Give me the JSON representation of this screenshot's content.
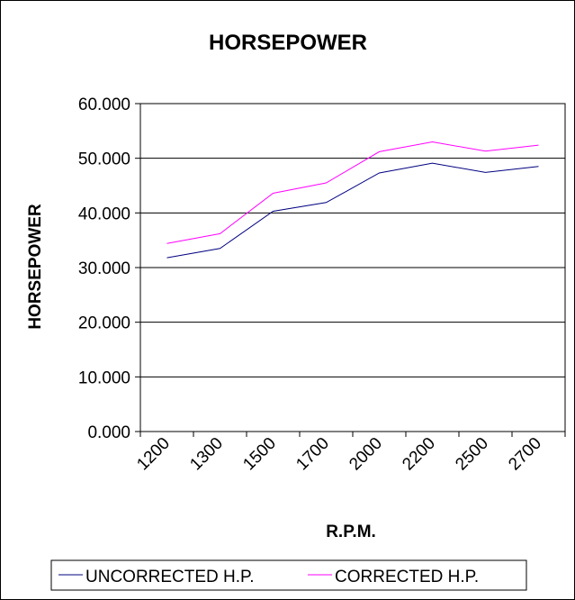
{
  "chart_data": {
    "type": "line",
    "title": "HORSEPOWER",
    "xlabel": "R.P.M.",
    "ylabel": "HORSEPOWER",
    "categories": [
      "1200",
      "1300",
      "1500",
      "1700",
      "2000",
      "2200",
      "2500",
      "2700"
    ],
    "ylim": [
      0,
      60
    ],
    "y_ticks": [
      "0.000",
      "10.000",
      "20.000",
      "30.000",
      "40.000",
      "50.000",
      "60.000"
    ],
    "grid": "horizontal",
    "legend_position": "bottom",
    "series": [
      {
        "name": "UNCORRECTED H.P.",
        "color": "#000080",
        "values": [
          31.8,
          33.5,
          40.3,
          41.9,
          47.3,
          49.1,
          47.4,
          48.5
        ]
      },
      {
        "name": "CORRECTED H.P.",
        "color": "#ff00ff",
        "values": [
          34.4,
          36.2,
          43.6,
          45.5,
          51.2,
          53.0,
          51.3,
          52.4
        ]
      }
    ]
  }
}
